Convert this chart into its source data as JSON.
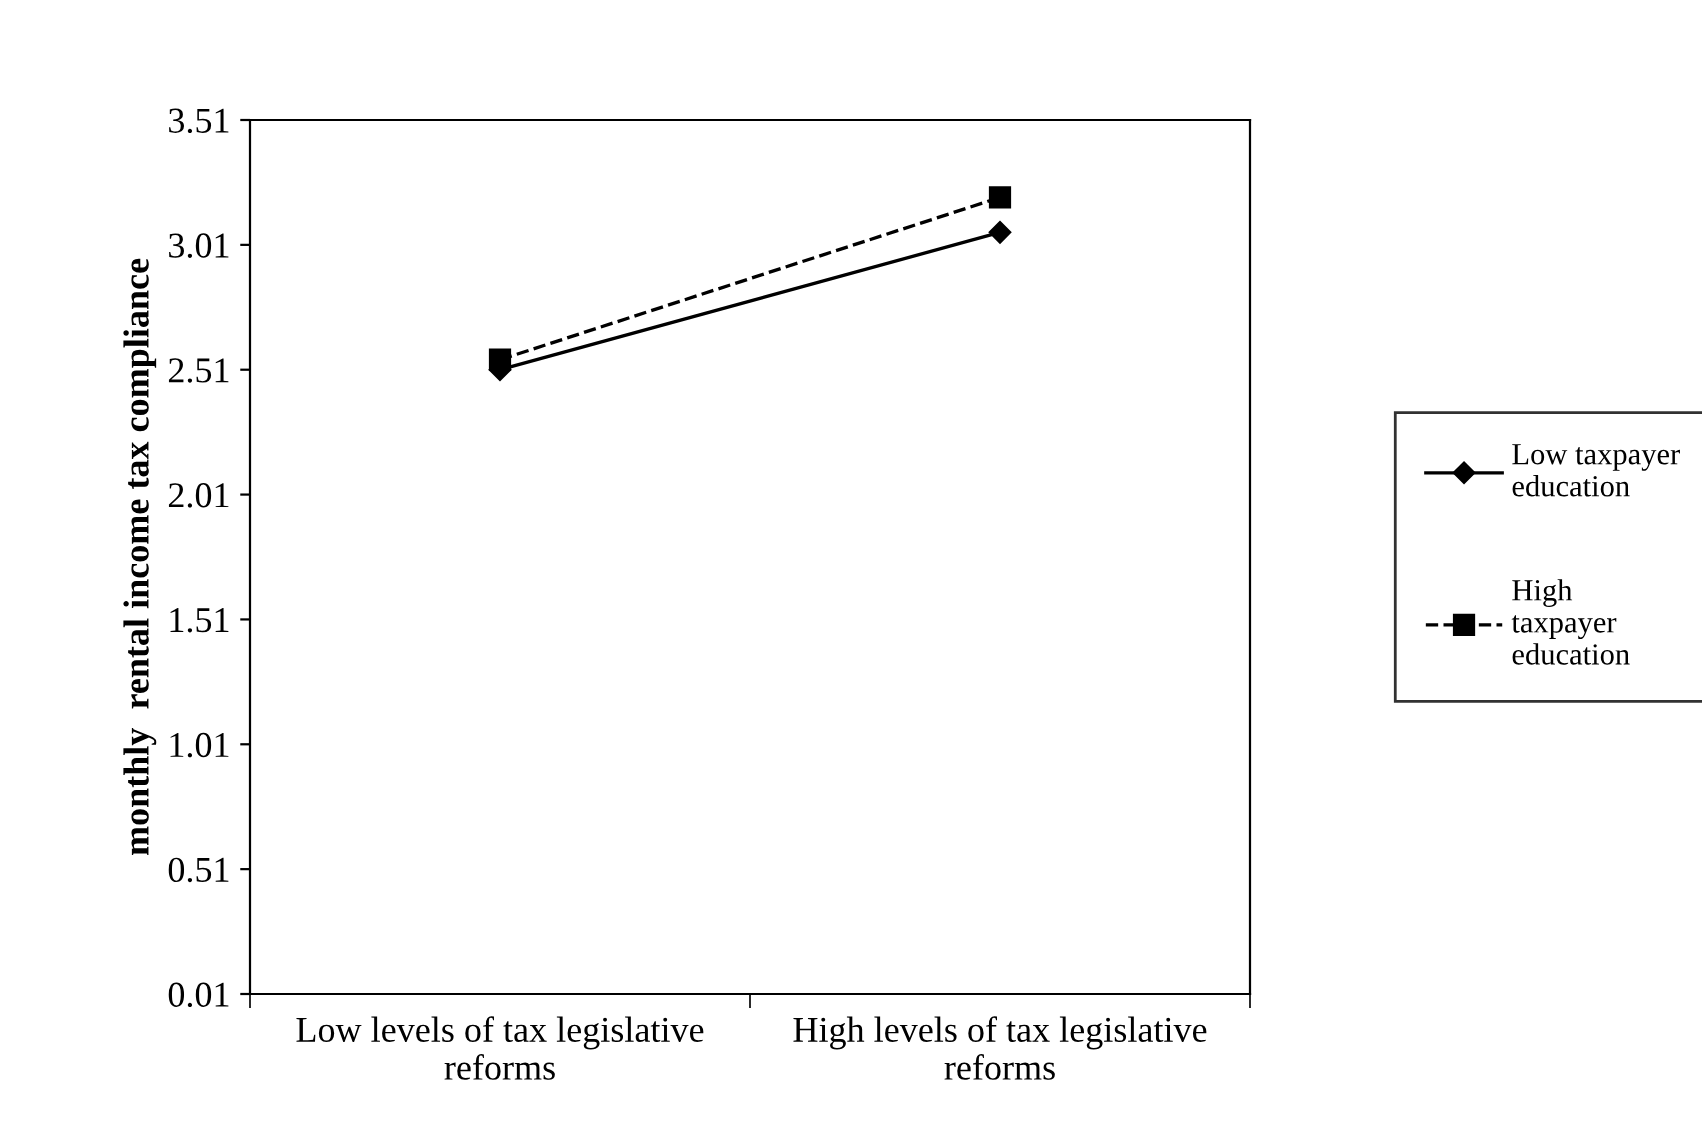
{
  "chart_data": {
    "type": "line",
    "ylabel": "monthly  rental income tax compliance",
    "categories": [
      "Low levels of tax legislative\nreforms",
      "High levels of tax legislative\nreforms"
    ],
    "series": [
      {
        "name": "Low taxpayer\neducation",
        "color": "#000000",
        "values": [
          2.51,
          3.06
        ],
        "marker": "diamond",
        "line_style": "solid"
      },
      {
        "name": "High\ntaxpayer\neducation",
        "color": "#000000",
        "values": [
          2.55,
          3.2
        ],
        "marker": "square",
        "line_style": "dashed"
      }
    ],
    "ylim": [
      0.01,
      3.51
    ],
    "yticks": [
      0.01,
      0.51,
      1.01,
      1.51,
      2.01,
      2.51,
      3.01,
      3.51
    ],
    "grid": false,
    "legend": "right"
  }
}
